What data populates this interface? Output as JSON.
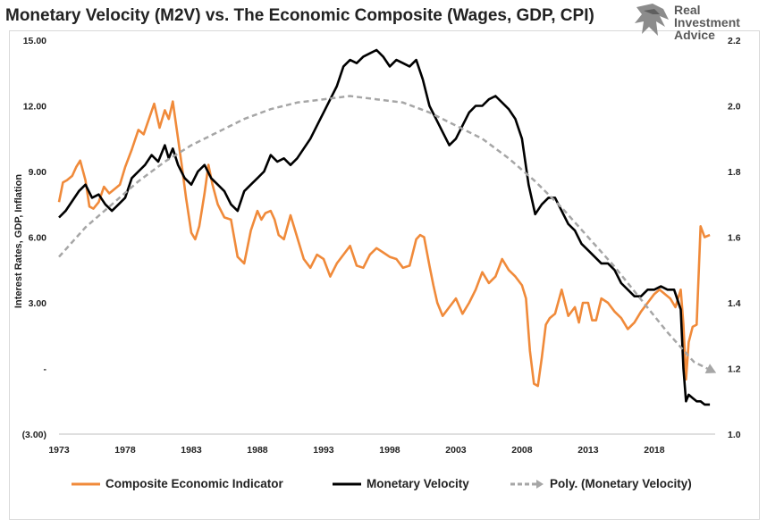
{
  "title": "Monetary Velocity (M2V) vs. The Economic Composite (Wages, GDP, CPI)",
  "logo": {
    "line1": "Real",
    "line2": "Investment",
    "line3": "Advice",
    "icon": "eagle-head-icon"
  },
  "colors": {
    "composite": "#f08a3a",
    "velocity": "#000000",
    "poly": "#a6a6a6"
  },
  "chart_data": {
    "type": "line",
    "ylabel": "Interest Rates, GDP, Inflation",
    "xlim": [
      1973,
      2022.6
    ],
    "ylim": [
      -3,
      15
    ],
    "y2lim": [
      1.0,
      2.2
    ],
    "x_ticks": [
      "1973",
      "1978",
      "1983",
      "1988",
      "1993",
      "1998",
      "2003",
      "2008",
      "2013",
      "2018"
    ],
    "y_ticks": [
      "(3.00)",
      "-",
      "3.00",
      "6.00",
      "9.00",
      "12.00",
      "15.00"
    ],
    "y_tick_values": [
      -3,
      0,
      3,
      6,
      9,
      12,
      15
    ],
    "y2_ticks": [
      "1.0",
      "1.2",
      "1.4",
      "1.6",
      "1.8",
      "2.0",
      "2.2"
    ],
    "y2_tick_values": [
      1.0,
      1.2,
      1.4,
      1.6,
      1.8,
      2.0,
      2.2
    ],
    "legend_position": "bottom",
    "series": [
      {
        "name": "Composite Economic Indicator",
        "axis": "left",
        "style": "solid",
        "x": [
          1973.0,
          1973.3,
          1973.6,
          1974.0,
          1974.3,
          1974.6,
          1975.0,
          1975.3,
          1975.6,
          1976.0,
          1976.4,
          1976.8,
          1977.2,
          1977.6,
          1978.0,
          1978.5,
          1979.0,
          1979.4,
          1979.8,
          1980.2,
          1980.6,
          1981.0,
          1981.3,
          1981.6,
          1982.0,
          1982.3,
          1982.6,
          1983.0,
          1983.3,
          1983.6,
          1984.0,
          1984.3,
          1984.6,
          1985.0,
          1985.5,
          1986.0,
          1986.5,
          1987.0,
          1987.5,
          1988.0,
          1988.3,
          1988.6,
          1989.0,
          1989.3,
          1989.6,
          1990.0,
          1990.5,
          1991.0,
          1991.5,
          1992.0,
          1992.5,
          1993.0,
          1993.5,
          1994.0,
          1994.5,
          1995.0,
          1995.5,
          1996.0,
          1996.5,
          1997.0,
          1997.5,
          1998.0,
          1998.5,
          1999.0,
          1999.5,
          2000.0,
          2000.3,
          2000.6,
          2001.0,
          2001.3,
          2001.6,
          2002.0,
          2002.5,
          2003.0,
          2003.5,
          2004.0,
          2004.5,
          2005.0,
          2005.5,
          2006.0,
          2006.5,
          2007.0,
          2007.5,
          2008.0,
          2008.3,
          2008.6,
          2008.9,
          2009.2,
          2009.5,
          2009.8,
          2010.1,
          2010.5,
          2011.0,
          2011.5,
          2012.0,
          2012.3,
          2012.6,
          2013.0,
          2013.3,
          2013.6,
          2014.0,
          2014.5,
          2015.0,
          2015.5,
          2016.0,
          2016.5,
          2017.0,
          2017.5,
          2018.0,
          2018.4,
          2018.8,
          2019.2,
          2019.6,
          2020.0,
          2020.2,
          2020.4,
          2020.6,
          2020.9,
          2021.2,
          2021.5,
          2021.8,
          2022.2
        ],
        "y": [
          7.6,
          8.5,
          8.6,
          8.8,
          9.2,
          9.5,
          8.6,
          7.4,
          7.3,
          7.6,
          8.3,
          8.0,
          8.2,
          8.4,
          9.2,
          10.0,
          10.9,
          10.7,
          11.4,
          12.1,
          11.0,
          11.8,
          11.4,
          12.2,
          10.5,
          9.2,
          7.8,
          6.2,
          5.9,
          6.5,
          8.0,
          9.3,
          8.4,
          7.5,
          6.9,
          6.8,
          5.1,
          4.8,
          6.3,
          7.2,
          6.8,
          7.1,
          7.2,
          6.8,
          6.1,
          5.9,
          7.0,
          6.0,
          5.0,
          4.6,
          5.2,
          5.0,
          4.2,
          4.8,
          5.2,
          5.6,
          4.7,
          4.6,
          5.2,
          5.5,
          5.3,
          5.1,
          5.0,
          4.6,
          4.7,
          5.9,
          6.1,
          6.0,
          4.7,
          3.8,
          3.0,
          2.4,
          2.8,
          3.2,
          2.5,
          3.0,
          3.6,
          4.4,
          3.9,
          4.2,
          5.0,
          4.5,
          4.2,
          3.8,
          3.2,
          0.8,
          -0.7,
          -0.8,
          0.5,
          2.0,
          2.3,
          2.5,
          3.6,
          2.4,
          2.8,
          2.1,
          3.0,
          3.0,
          2.2,
          2.2,
          3.2,
          3.0,
          2.6,
          2.3,
          1.8,
          2.1,
          2.6,
          3.0,
          3.4,
          3.6,
          3.4,
          3.2,
          2.8,
          3.6,
          2.0,
          -0.5,
          1.2,
          1.9,
          2.0,
          6.5,
          6.0,
          6.1
        ]
      },
      {
        "name": "Monetary Velocity",
        "axis": "right",
        "style": "solid",
        "x": [
          1973.0,
          1973.5,
          1974.0,
          1974.5,
          1975.0,
          1975.5,
          1976.0,
          1976.5,
          1977.0,
          1977.5,
          1978.0,
          1978.5,
          1979.0,
          1979.5,
          1980.0,
          1980.5,
          1981.0,
          1981.3,
          1981.6,
          1982.0,
          1982.5,
          1983.0,
          1983.5,
          1984.0,
          1984.5,
          1985.0,
          1985.5,
          1986.0,
          1986.5,
          1987.0,
          1987.5,
          1988.0,
          1988.5,
          1989.0,
          1989.5,
          1990.0,
          1990.5,
          1991.0,
          1991.5,
          1992.0,
          1992.5,
          1993.0,
          1993.5,
          1994.0,
          1994.5,
          1995.0,
          1995.5,
          1996.0,
          1996.5,
          1997.0,
          1997.5,
          1998.0,
          1998.5,
          1999.0,
          1999.5,
          2000.0,
          2000.5,
          2001.0,
          2001.5,
          2002.0,
          2002.5,
          2003.0,
          2003.5,
          2004.0,
          2004.5,
          2005.0,
          2005.5,
          2006.0,
          2006.5,
          2007.0,
          2007.5,
          2008.0,
          2008.5,
          2009.0,
          2009.5,
          2010.0,
          2010.5,
          2011.0,
          2011.5,
          2012.0,
          2012.5,
          2013.0,
          2013.5,
          2014.0,
          2014.5,
          2015.0,
          2015.5,
          2016.0,
          2016.5,
          2017.0,
          2017.5,
          2018.0,
          2018.5,
          2019.0,
          2019.5,
          2020.0,
          2020.2,
          2020.4,
          2020.6,
          2020.9,
          2021.2,
          2021.5,
          2021.8,
          2022.2
        ],
        "y": [
          1.66,
          1.68,
          1.71,
          1.74,
          1.76,
          1.72,
          1.73,
          1.7,
          1.68,
          1.7,
          1.72,
          1.78,
          1.8,
          1.82,
          1.85,
          1.83,
          1.88,
          1.84,
          1.87,
          1.82,
          1.78,
          1.76,
          1.8,
          1.82,
          1.78,
          1.76,
          1.74,
          1.7,
          1.68,
          1.74,
          1.76,
          1.78,
          1.8,
          1.85,
          1.83,
          1.84,
          1.82,
          1.84,
          1.87,
          1.9,
          1.94,
          1.98,
          2.02,
          2.06,
          2.12,
          2.14,
          2.13,
          2.15,
          2.16,
          2.17,
          2.15,
          2.12,
          2.14,
          2.13,
          2.12,
          2.14,
          2.08,
          2.0,
          1.96,
          1.92,
          1.88,
          1.9,
          1.94,
          1.98,
          2.0,
          2.0,
          2.02,
          2.03,
          2.01,
          1.99,
          1.96,
          1.9,
          1.76,
          1.67,
          1.7,
          1.72,
          1.72,
          1.68,
          1.64,
          1.62,
          1.58,
          1.56,
          1.54,
          1.52,
          1.52,
          1.5,
          1.46,
          1.44,
          1.42,
          1.42,
          1.44,
          1.44,
          1.45,
          1.44,
          1.44,
          1.38,
          1.2,
          1.1,
          1.12,
          1.11,
          1.1,
          1.1,
          1.09,
          1.09
        ]
      },
      {
        "name": "Poly. (Monetary Velocity)",
        "axis": "right",
        "style": "dashed",
        "polynomial_order": 2,
        "x": [
          1973.0,
          1975.0,
          1977.0,
          1979.0,
          1981.0,
          1983.0,
          1985.0,
          1987.0,
          1989.0,
          1991.0,
          1993.0,
          1995.0,
          1997.0,
          1999.0,
          2001.0,
          2003.0,
          2005.0,
          2007.0,
          2009.0,
          2011.0,
          2013.0,
          2015.0,
          2017.0,
          2019.0,
          2021.0,
          2022.5
        ],
        "y": [
          1.54,
          1.63,
          1.7,
          1.77,
          1.83,
          1.88,
          1.92,
          1.96,
          1.99,
          2.01,
          2.02,
          2.03,
          2.02,
          2.01,
          1.98,
          1.94,
          1.9,
          1.84,
          1.77,
          1.69,
          1.6,
          1.51,
          1.41,
          1.31,
          1.22,
          1.19
        ]
      }
    ]
  }
}
